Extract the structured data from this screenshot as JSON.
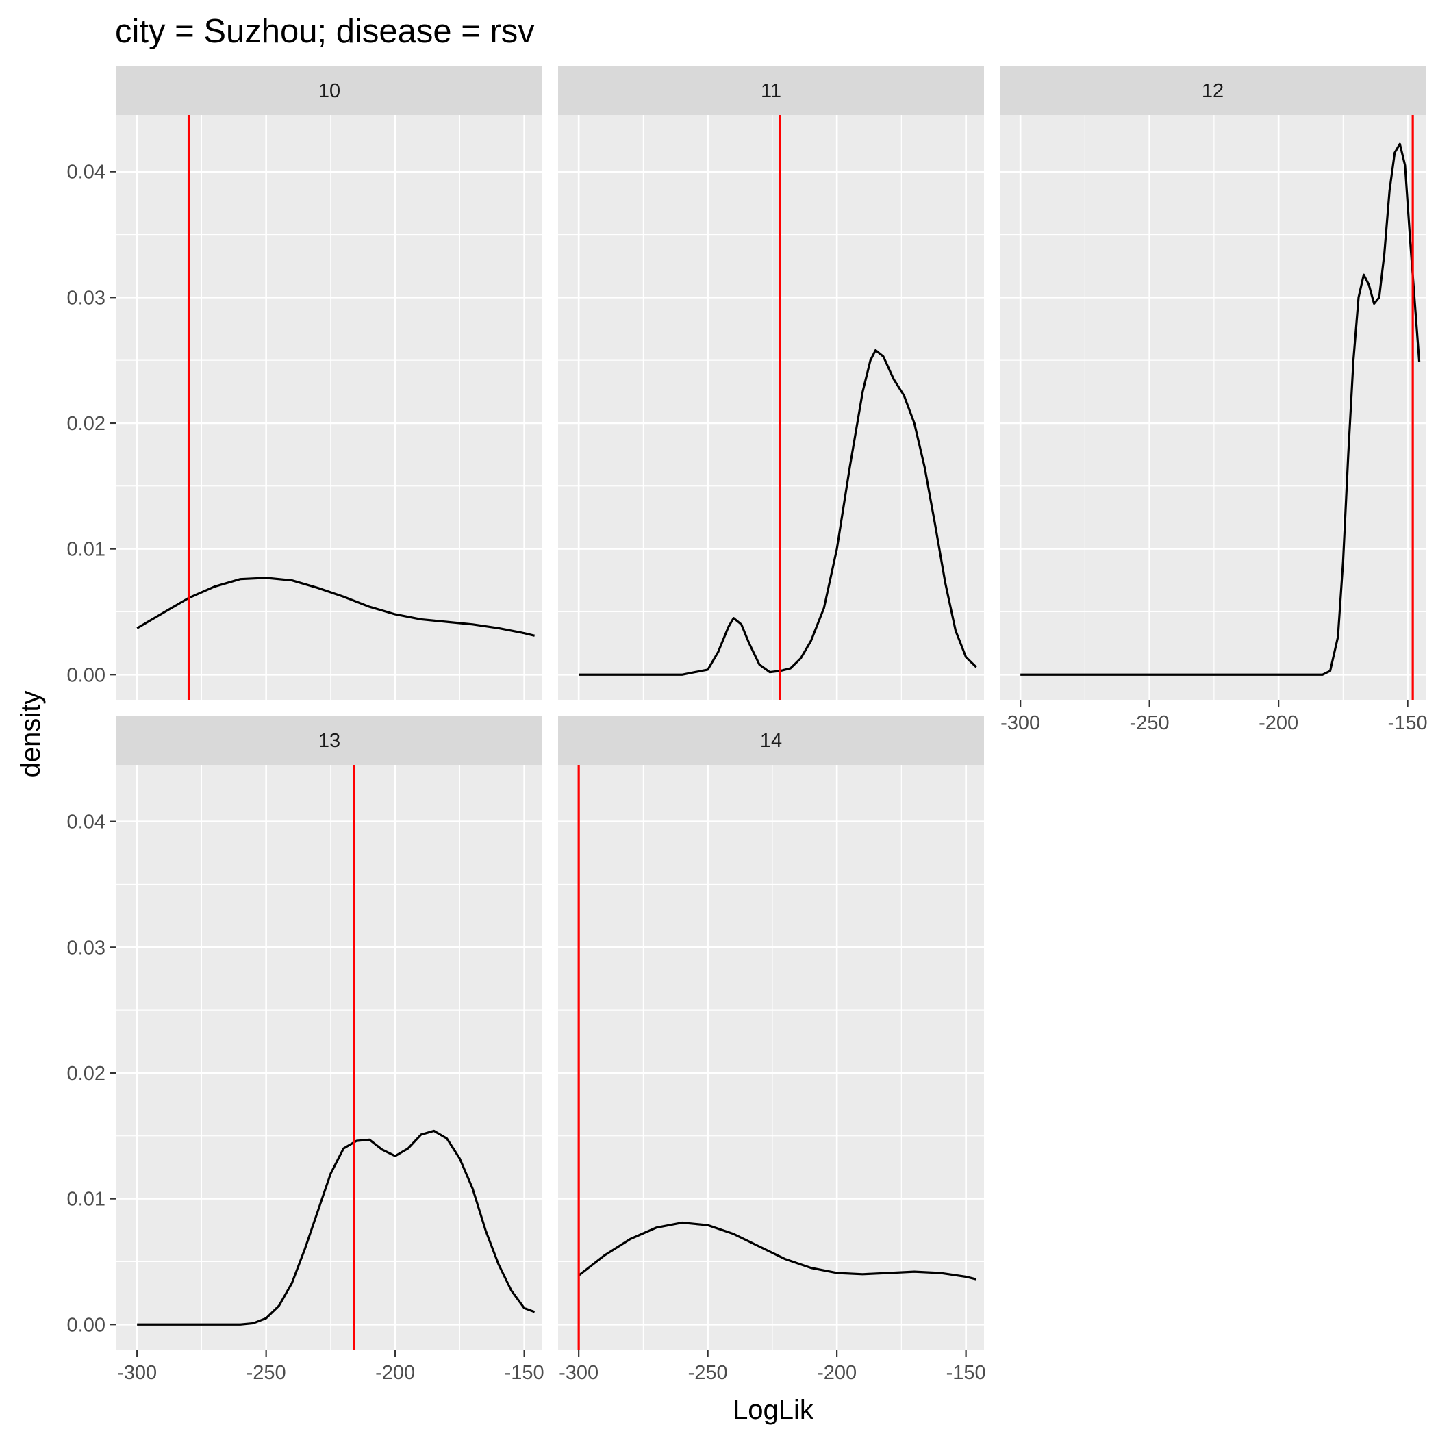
{
  "chart_data": {
    "type": "line",
    "title": "city = Suzhou; disease = rsv",
    "xlabel": "LogLik",
    "ylabel": "density",
    "xlim": [
      -308,
      -143
    ],
    "ylim": [
      -0.002,
      0.0445
    ],
    "x_ticks": [
      -300,
      -250,
      -200,
      -150
    ],
    "y_ticks": [
      0,
      0.01,
      0.02,
      0.03,
      0.04
    ],
    "x_tick_labels": [
      "-300",
      "-250",
      "-200",
      "-150"
    ],
    "y_tick_labels": [
      "0.00",
      "0.01",
      "0.02",
      "0.03",
      "0.04"
    ],
    "grid": true,
    "facet_by": "number",
    "line_color": "#000000",
    "vline_color": "#ff0000",
    "panel_background": "#ebebeb",
    "strip_background": "#d9d9d9",
    "panels": [
      {
        "label": "10",
        "vline": -280,
        "x": [
          -300,
          -290,
          -280,
          -270,
          -260,
          -250,
          -240,
          -230,
          -220,
          -210,
          -200,
          -190,
          -180,
          -170,
          -160,
          -150,
          -146
        ],
        "y": [
          0.0037,
          0.0049,
          0.0061,
          0.007,
          0.0076,
          0.0077,
          0.0075,
          0.0069,
          0.0062,
          0.0054,
          0.0048,
          0.0044,
          0.0042,
          0.004,
          0.0037,
          0.0033,
          0.0031
        ]
      },
      {
        "label": "11",
        "vline": -222,
        "x": [
          -300,
          -260,
          -250,
          -246,
          -242,
          -240,
          -237,
          -234,
          -230,
          -226,
          -222,
          -218,
          -214,
          -210,
          -205,
          -200,
          -195,
          -190,
          -187,
          -185,
          -182,
          -178,
          -174,
          -170,
          -166,
          -162,
          -158,
          -154,
          -150,
          -146
        ],
        "y": [
          0.0,
          0.0,
          0.0004,
          0.0018,
          0.0038,
          0.0045,
          0.004,
          0.0025,
          0.0008,
          0.0002,
          0.0003,
          0.0005,
          0.0013,
          0.0027,
          0.0053,
          0.01,
          0.0165,
          0.0225,
          0.025,
          0.0258,
          0.0253,
          0.0235,
          0.0222,
          0.02,
          0.0165,
          0.012,
          0.0073,
          0.0035,
          0.0014,
          0.0006
        ]
      },
      {
        "label": "12",
        "vline": -148,
        "x": [
          -300,
          -183,
          -180,
          -177,
          -175,
          -173,
          -171,
          -169,
          -167,
          -165,
          -163,
          -161,
          -159,
          -157,
          -155,
          -153,
          -151,
          -149,
          -147,
          -145.5
        ],
        "y": [
          0.0,
          0.0,
          0.0003,
          0.003,
          0.009,
          0.0175,
          0.025,
          0.03,
          0.0318,
          0.031,
          0.0295,
          0.03,
          0.0335,
          0.0385,
          0.0415,
          0.0422,
          0.0405,
          0.0345,
          0.029,
          0.0249
        ]
      },
      {
        "label": "13",
        "vline": -216,
        "x": [
          -300,
          -260,
          -255,
          -250,
          -245,
          -240,
          -235,
          -230,
          -225,
          -220,
          -215,
          -210,
          -205,
          -200,
          -195,
          -190,
          -185,
          -180,
          -175,
          -170,
          -165,
          -160,
          -155,
          -150,
          -146
        ],
        "y": [
          0.0,
          0.0,
          0.0001,
          0.0005,
          0.0015,
          0.0033,
          0.006,
          0.009,
          0.012,
          0.014,
          0.0146,
          0.0147,
          0.0139,
          0.0134,
          0.014,
          0.0151,
          0.0154,
          0.0148,
          0.0132,
          0.0108,
          0.0075,
          0.0048,
          0.0027,
          0.0013,
          0.001
        ]
      },
      {
        "label": "14",
        "vline": -300,
        "x": [
          -300,
          -290,
          -280,
          -270,
          -260,
          -250,
          -240,
          -230,
          -220,
          -210,
          -200,
          -190,
          -180,
          -170,
          -160,
          -150,
          -146
        ],
        "y": [
          0.0039,
          0.0055,
          0.0068,
          0.0077,
          0.0081,
          0.0079,
          0.0072,
          0.0062,
          0.0052,
          0.0045,
          0.0041,
          0.004,
          0.0041,
          0.0042,
          0.0041,
          0.0038,
          0.0036
        ]
      }
    ]
  }
}
